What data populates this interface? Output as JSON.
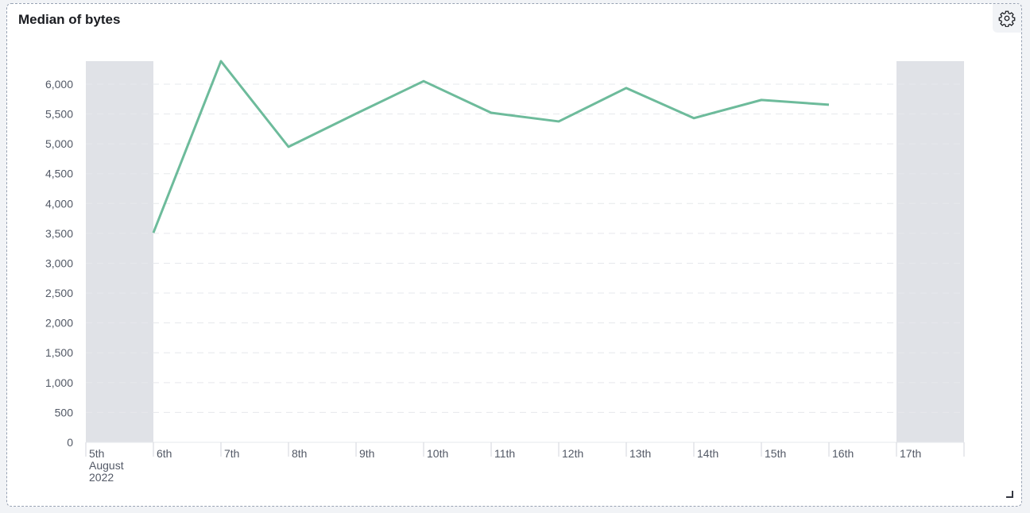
{
  "panel": {
    "title": "Median of bytes",
    "settings_icon": "gear-icon",
    "resize_icon": "resize-handle-icon"
  },
  "chart_data": {
    "type": "line",
    "title": "Median of bytes",
    "xlabel": "",
    "ylabel": "",
    "x": [
      "6th",
      "7th",
      "8th",
      "9th",
      "10th",
      "11th",
      "12th",
      "13th",
      "14th",
      "15th",
      "16th"
    ],
    "x_days": [
      6,
      7,
      8,
      9,
      10,
      11,
      12,
      13,
      14,
      15,
      16
    ],
    "values": [
      3510,
      6385,
      4950,
      5505,
      6050,
      5520,
      5375,
      5935,
      5430,
      5735,
      5655
    ],
    "x_tick_labels": [
      "5th",
      "6th",
      "7th",
      "8th",
      "9th",
      "10th",
      "11th",
      "12th",
      "13th",
      "14th",
      "15th",
      "16th",
      "17th"
    ],
    "x_tick_days": [
      5,
      6,
      7,
      8,
      9,
      10,
      11,
      12,
      13,
      14,
      15,
      16,
      17
    ],
    "x_sublabel": [
      "August",
      "2022"
    ],
    "xlim_days": [
      5,
      18
    ],
    "shaded_ranges_days": [
      [
        5,
        6
      ],
      [
        17,
        18
      ]
    ],
    "y_ticks": [
      0,
      500,
      1000,
      1500,
      2000,
      2500,
      3000,
      3500,
      4000,
      4500,
      5000,
      5500,
      6000
    ],
    "y_tick_labels": [
      "0",
      "500",
      "1,000",
      "1,500",
      "2,000",
      "2,500",
      "3,000",
      "3,500",
      "4,000",
      "4,500",
      "5,000",
      "5,500",
      "6,000"
    ],
    "ylim": [
      0,
      6385
    ],
    "grid": "horizontal dashed",
    "line_color": "#6dbb9b",
    "shade_color": "#e0e2e7"
  }
}
